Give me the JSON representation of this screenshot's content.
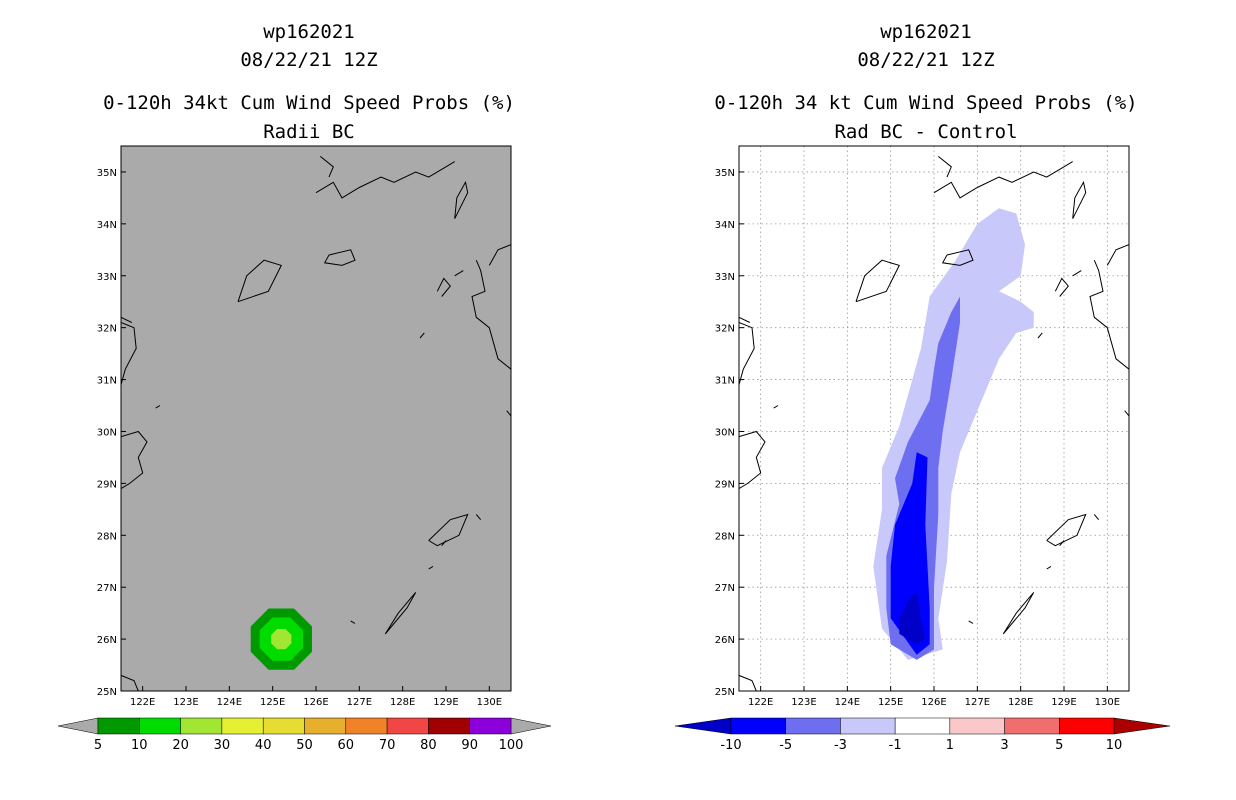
{
  "colors": {
    "left_background": "#aaaaaa",
    "prob_bins": [
      "#009a00",
      "#00dc00",
      "#a0e632",
      "#e6f032",
      "#e6dc32",
      "#e6af2d",
      "#f08228",
      "#f04646",
      "#a00000",
      "#8c00dc"
    ],
    "diff_bins": [
      "#0000c8",
      "#0000ff",
      "#6e6ef0",
      "#c8c8fa",
      "#ffffff",
      "#fac8c8",
      "#f06e6e",
      "#ff0000",
      "#aa0000"
    ],
    "coast": "#000000",
    "grid": "#999999"
  },
  "chart_data": [
    {
      "type": "heatmap",
      "storm_id": "wp162021",
      "datetime": "08/22/21 12Z",
      "title": "0-120h 34kt Cum Wind Speed Probs (%)",
      "subtitle": "Radii BC",
      "lon_range": [
        121.5,
        130.5
      ],
      "lat_range": [
        25,
        35.5
      ],
      "x_ticks": [
        122,
        123,
        124,
        125,
        126,
        127,
        128,
        129,
        130
      ],
      "x_tick_labels": [
        "122E",
        "123E",
        "124E",
        "125E",
        "126E",
        "127E",
        "128E",
        "129E",
        "130E"
      ],
      "y_ticks": [
        25,
        26,
        27,
        28,
        29,
        30,
        31,
        32,
        33,
        34,
        35
      ],
      "y_tick_labels": [
        "25N",
        "26N",
        "27N",
        "28N",
        "29N",
        "30N",
        "31N",
        "32N",
        "33N",
        "34N",
        "35N"
      ],
      "grid": false,
      "colorbar": {
        "labels": [
          "5",
          "10",
          "20",
          "30",
          "40",
          "50",
          "60",
          "70",
          "80",
          "90",
          "100"
        ],
        "colors_key": "prob_bins"
      },
      "contours": [
        {
          "level": "5-10",
          "color_index": 0,
          "center": [
            125.2,
            26.0
          ],
          "radius_deg": 0.85
        },
        {
          "level": "10-20",
          "color_index": 1,
          "center": [
            125.2,
            26.0
          ],
          "radius_deg": 0.6
        },
        {
          "level": "20-30",
          "color_index": 2,
          "center": [
            125.2,
            26.0
          ],
          "radius_deg": 0.28
        }
      ]
    },
    {
      "type": "heatmap",
      "storm_id": "wp162021",
      "datetime": "08/22/21 12Z",
      "title": "0-120h 34 kt Cum Wind Speed Probs (%)",
      "subtitle": "Rad BC - Control",
      "lon_range": [
        121.5,
        130.5
      ],
      "lat_range": [
        25,
        35.5
      ],
      "x_ticks": [
        122,
        123,
        124,
        125,
        126,
        127,
        128,
        129,
        130
      ],
      "x_tick_labels": [
        "122E",
        "123E",
        "124E",
        "125E",
        "126E",
        "127E",
        "128E",
        "129E",
        "130E"
      ],
      "y_ticks": [
        25,
        26,
        27,
        28,
        29,
        30,
        31,
        32,
        33,
        34,
        35
      ],
      "y_tick_labels": [
        "25N",
        "26N",
        "27N",
        "28N",
        "29N",
        "30N",
        "31N",
        "32N",
        "33N",
        "34N",
        "35N"
      ],
      "grid": true,
      "colorbar": {
        "labels": [
          "-10",
          "-5",
          "-3",
          "-1",
          "1",
          "3",
          "5",
          "10"
        ],
        "colors_key": "diff_bins"
      },
      "contours": [
        {
          "level": "-3 to -1",
          "color_index": 3,
          "lonlat": [
            [
              126.2,
              25.8
            ],
            [
              125.4,
              25.6
            ],
            [
              124.8,
              26.2
            ],
            [
              124.6,
              27.4
            ],
            [
              124.8,
              28.5
            ],
            [
              124.8,
              29.3
            ],
            [
              125.2,
              30.1
            ],
            [
              125.5,
              31.0
            ],
            [
              125.7,
              31.6
            ],
            [
              125.9,
              32.6
            ],
            [
              126.5,
              33.3
            ],
            [
              127.0,
              34.0
            ],
            [
              127.5,
              34.3
            ],
            [
              127.9,
              34.2
            ],
            [
              128.1,
              33.6
            ],
            [
              128.0,
              33.0
            ],
            [
              127.5,
              32.7
            ],
            [
              128.0,
              32.5
            ],
            [
              128.3,
              32.3
            ],
            [
              128.3,
              32.0
            ],
            [
              127.9,
              31.9
            ],
            [
              127.5,
              31.4
            ],
            [
              127.1,
              30.6
            ],
            [
              126.6,
              29.6
            ],
            [
              126.4,
              28.8
            ],
            [
              126.3,
              27.5
            ],
            [
              126.1,
              26.4
            ],
            [
              126.2,
              25.8
            ]
          ]
        },
        {
          "level": "-5 to -3",
          "color_index": 2,
          "lonlat": [
            [
              126.0,
              25.8
            ],
            [
              125.6,
              25.6
            ],
            [
              125.0,
              25.9
            ],
            [
              124.9,
              26.6
            ],
            [
              124.9,
              27.6
            ],
            [
              125.2,
              28.6
            ],
            [
              125.1,
              29.1
            ],
            [
              125.4,
              29.8
            ],
            [
              125.9,
              30.6
            ],
            [
              126.0,
              31.2
            ],
            [
              126.1,
              31.7
            ],
            [
              126.4,
              32.3
            ],
            [
              126.6,
              32.6
            ],
            [
              126.6,
              32.1
            ],
            [
              126.4,
              31.0
            ],
            [
              126.2,
              30.0
            ],
            [
              126.1,
              29.3
            ],
            [
              126.1,
              28.4
            ],
            [
              126.0,
              27.0
            ],
            [
              126.0,
              25.8
            ]
          ]
        },
        {
          "level": "-10 to -5",
          "color_index": 1,
          "lonlat": [
            [
              125.9,
              25.9
            ],
            [
              125.6,
              25.7
            ],
            [
              125.0,
              26.4
            ],
            [
              125.0,
              27.4
            ],
            [
              125.1,
              28.2
            ],
            [
              125.5,
              29.0
            ],
            [
              125.6,
              29.6
            ],
            [
              125.85,
              29.5
            ],
            [
              125.8,
              28.2
            ],
            [
              125.9,
              26.6
            ],
            [
              125.9,
              25.9
            ]
          ]
        },
        {
          "level": "< -10",
          "color_index": 0,
          "lonlat": [
            [
              125.8,
              26.0
            ],
            [
              125.6,
              25.9
            ],
            [
              125.2,
              26.1
            ],
            [
              125.2,
              26.4
            ],
            [
              125.45,
              26.8
            ],
            [
              125.6,
              26.9
            ],
            [
              125.7,
              26.4
            ],
            [
              125.8,
              26.0
            ]
          ]
        }
      ]
    }
  ]
}
